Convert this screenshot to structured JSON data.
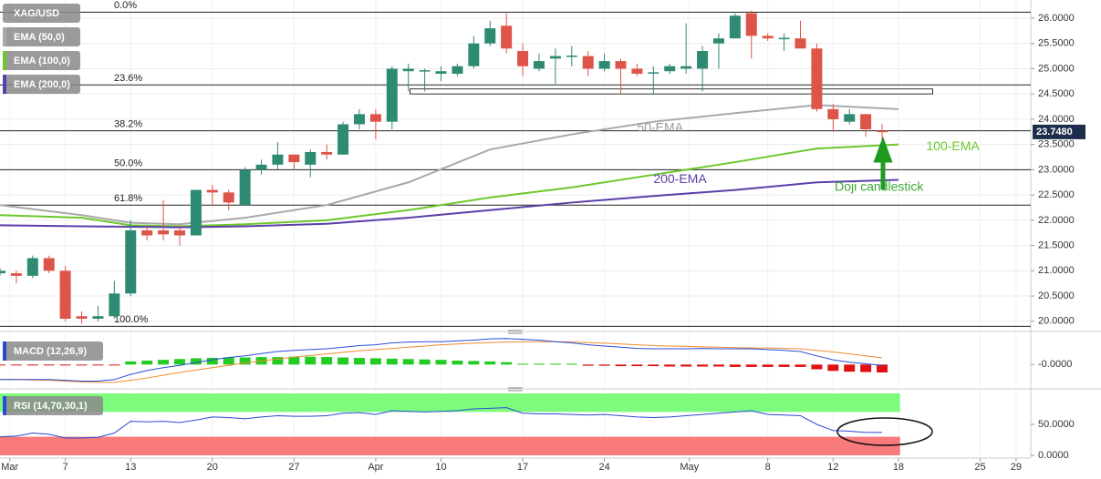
{
  "chart_data": [
    {
      "type": "candlestick",
      "instrument": "XAG/USD",
      "xlim": [
        0,
        63.1
      ],
      "ylim": [
        19.87,
        26.36
      ],
      "yticks": [
        {
          "value": 20,
          "label": "20.0000"
        },
        {
          "value": 20.5,
          "label": "20.5000"
        },
        {
          "value": 21,
          "label": "21.0000"
        },
        {
          "value": 21.5,
          "label": "21.5000"
        },
        {
          "value": 22,
          "label": "22.0000"
        },
        {
          "value": 22.5,
          "label": "22.5000"
        },
        {
          "value": 23,
          "label": "23.0000"
        },
        {
          "value": 23.5,
          "label": "23.5000"
        },
        {
          "value": 24,
          "label": "24.0000"
        },
        {
          "value": 24.5,
          "label": "24.5000"
        },
        {
          "value": 25,
          "label": "25.0000"
        },
        {
          "value": 25.5,
          "label": "25.5000"
        },
        {
          "value": 26,
          "label": "26.0000"
        }
      ],
      "x": [
        0,
        1,
        2,
        3,
        4,
        5,
        6,
        7,
        8,
        9,
        10,
        11,
        12,
        13,
        14,
        15,
        16,
        17,
        18,
        19,
        20,
        21,
        22,
        23,
        24,
        25,
        26,
        27,
        28,
        29,
        30,
        31,
        32,
        33,
        34,
        35,
        36,
        37,
        38,
        39,
        40,
        41,
        42,
        43,
        44,
        45,
        46,
        47,
        48,
        49,
        50,
        51,
        52,
        53,
        54
      ],
      "open": [
        20.95,
        20.95,
        20.9,
        21.25,
        21.0,
        20.1,
        20.05,
        20.1,
        20.55,
        21.8,
        21.8,
        21.8,
        21.7,
        22.6,
        22.55,
        22.3,
        23.0,
        23.1,
        23.3,
        23.1,
        23.35,
        23.3,
        23.9,
        24.1,
        23.95,
        24.95,
        24.95,
        24.9,
        24.9,
        25.05,
        25.5,
        25.85,
        25.35,
        25.0,
        25.2,
        25.25,
        25.25,
        25.0,
        25.15,
        25.0,
        24.92,
        24.95,
        25.0,
        25.0,
        25.5,
        25.6,
        26.1,
        25.65,
        25.6,
        25.6,
        25.4,
        24.2,
        23.95,
        24.1,
        23.77
      ],
      "high": [
        21.05,
        21.0,
        21.3,
        21.3,
        21.1,
        20.2,
        20.3,
        20.8,
        22.0,
        21.9,
        22.4,
        21.9,
        22.6,
        22.7,
        22.6,
        23.05,
        23.2,
        23.55,
        23.3,
        23.4,
        23.5,
        23.95,
        24.2,
        24.2,
        25.05,
        25.1,
        25.0,
        25.05,
        25.1,
        25.65,
        25.95,
        26.1,
        25.5,
        25.3,
        25.4,
        25.45,
        25.35,
        25.3,
        25.2,
        25.1,
        25.05,
        25.1,
        25.9,
        25.45,
        25.7,
        26.1,
        26.15,
        25.7,
        25.7,
        25.95,
        25.5,
        24.3,
        24.2,
        24.1,
        23.9
      ],
      "low": [
        20.9,
        20.75,
        20.85,
        20.95,
        20.0,
        19.95,
        20.0,
        20.05,
        20.5,
        21.6,
        21.6,
        21.5,
        21.7,
        22.3,
        22.2,
        22.3,
        22.9,
        23.0,
        23.0,
        22.85,
        23.2,
        23.3,
        23.8,
        23.6,
        23.8,
        24.55,
        24.55,
        24.75,
        24.85,
        25.0,
        25.45,
        25.3,
        24.85,
        24.95,
        24.7,
        25.05,
        24.85,
        24.95,
        24.5,
        24.85,
        24.5,
        24.9,
        24.9,
        24.55,
        25.0,
        25.6,
        25.2,
        25.55,
        25.35,
        25.4,
        24.15,
        23.75,
        23.9,
        23.65,
        23.55
      ],
      "close": [
        21.0,
        20.9,
        21.25,
        21.0,
        20.05,
        20.05,
        20.1,
        20.55,
        21.8,
        21.7,
        21.72,
        21.7,
        22.6,
        22.55,
        22.35,
        23.0,
        23.1,
        23.3,
        23.15,
        23.35,
        23.3,
        23.9,
        24.1,
        23.95,
        25.0,
        25.0,
        24.97,
        24.95,
        25.05,
        25.5,
        25.8,
        25.4,
        25.05,
        25.15,
        25.25,
        25.26,
        25.0,
        25.15,
        25.0,
        24.9,
        24.93,
        25.05,
        25.05,
        25.35,
        25.6,
        26.05,
        25.65,
        25.6,
        25.61,
        25.4,
        24.2,
        24.0,
        24.1,
        23.8,
        23.75
      ],
      "up_color": "#2f8a73",
      "down_color": "#dd5448",
      "series": [
        {
          "name": "EMA (50,0)",
          "color": "#a9a9a9",
          "x": [
            0,
            5,
            8,
            11,
            15,
            20,
            25,
            30,
            35,
            40,
            45,
            50,
            55
          ],
          "values": [
            22.3,
            22.1,
            21.95,
            21.92,
            22.05,
            22.3,
            22.75,
            23.4,
            23.7,
            23.95,
            24.12,
            24.28,
            24.2
          ]
        },
        {
          "name": "EMA (100,0)",
          "color": "#6cc82c",
          "x": [
            0,
            5,
            8,
            11,
            15,
            20,
            25,
            30,
            35,
            40,
            45,
            50,
            55
          ],
          "values": [
            22.1,
            22.05,
            21.9,
            21.88,
            21.92,
            22.0,
            22.2,
            22.45,
            22.65,
            22.9,
            23.15,
            23.42,
            23.5
          ]
        },
        {
          "name": "EMA (200,0)",
          "color": "#5b3fa8",
          "x": [
            0,
            5,
            8,
            11,
            15,
            20,
            25,
            30,
            35,
            40,
            45,
            50,
            55
          ],
          "values": [
            21.9,
            21.88,
            21.87,
            21.86,
            21.88,
            21.93,
            22.05,
            22.2,
            22.35,
            22.48,
            22.6,
            22.75,
            22.8
          ]
        }
      ],
      "levels": [
        {
          "label": "0.0%",
          "value": 26.12
        },
        {
          "label": "23.6%",
          "value": 24.68
        },
        {
          "label": "38.2%",
          "value": 23.77
        },
        {
          "label": "50.0%",
          "value": 23.0
        },
        {
          "label": "61.8%",
          "value": 22.3
        },
        {
          "label": "100.0%",
          "value": 19.9
        }
      ],
      "zone": {
        "x": [
          25.1,
          57.1
        ],
        "y": [
          24.6,
          24.5
        ]
      },
      "last_price": {
        "value": 23.748,
        "label": "23.7480"
      },
      "annotations": [
        {
          "text": "50-EMA",
          "x": 39,
          "y": 23.82,
          "color": "#9a9a9a"
        },
        {
          "text": "100-EMA",
          "x": 56.7,
          "y": 23.45,
          "color": "#6cc82c"
        },
        {
          "text": "200-EMA",
          "x": 40,
          "y": 22.8,
          "color": "#5b3fa8"
        },
        {
          "text": "Doji candlestick",
          "x": 51.1,
          "y": 22.65,
          "color": "#3aaa35"
        }
      ]
    },
    {
      "type": "macd",
      "name": "MACD (12,26,9)",
      "xlim": [
        0,
        63.1
      ],
      "ylim": [
        -0.5,
        0.7
      ],
      "yticks": [
        {
          "value": 0,
          "label": "-0.0000"
        }
      ],
      "x": [
        0,
        1,
        2,
        3,
        4,
        5,
        6,
        7,
        8,
        9,
        10,
        11,
        12,
        13,
        14,
        15,
        16,
        17,
        18,
        19,
        20,
        21,
        22,
        23,
        24,
        25,
        26,
        27,
        28,
        29,
        30,
        31,
        32,
        33,
        34,
        35,
        36,
        37,
        38,
        39,
        40,
        41,
        42,
        43,
        44,
        45,
        46,
        47,
        48,
        49,
        50,
        51,
        52,
        53,
        54
      ],
      "macd": [
        -0.38,
        -0.38,
        -0.38,
        -0.38,
        -0.4,
        -0.42,
        -0.42,
        -0.38,
        -0.25,
        -0.15,
        -0.08,
        -0.02,
        0.05,
        0.12,
        0.18,
        0.22,
        0.28,
        0.33,
        0.36,
        0.38,
        0.4,
        0.44,
        0.48,
        0.5,
        0.55,
        0.57,
        0.58,
        0.58,
        0.6,
        0.62,
        0.65,
        0.66,
        0.64,
        0.62,
        0.58,
        0.55,
        0.5,
        0.47,
        0.44,
        0.41,
        0.4,
        0.4,
        0.4,
        0.41,
        0.4,
        0.4,
        0.4,
        0.38,
        0.36,
        0.33,
        0.22,
        0.12,
        0.06,
        0.02,
        -0.02
      ],
      "signal": [
        -0.38,
        -0.38,
        -0.39,
        -0.4,
        -0.42,
        -0.44,
        -0.45,
        -0.45,
        -0.4,
        -0.34,
        -0.27,
        -0.2,
        -0.14,
        -0.08,
        -0.02,
        0.04,
        0.09,
        0.14,
        0.19,
        0.23,
        0.27,
        0.31,
        0.35,
        0.38,
        0.41,
        0.44,
        0.47,
        0.5,
        0.52,
        0.54,
        0.56,
        0.57,
        0.58,
        0.58,
        0.58,
        0.57,
        0.56,
        0.54,
        0.52,
        0.5,
        0.48,
        0.47,
        0.46,
        0.45,
        0.44,
        0.43,
        0.42,
        0.42,
        0.41,
        0.4,
        0.36,
        0.32,
        0.27,
        0.22,
        0.17
      ],
      "histogram": [
        -0.02,
        -0.02,
        -0.02,
        -0.02,
        -0.02,
        -0.02,
        -0.02,
        -0.02,
        0.08,
        0.1,
        0.12,
        0.14,
        0.16,
        0.17,
        0.18,
        0.18,
        0.19,
        0.19,
        0.2,
        0.2,
        0.19,
        0.18,
        0.17,
        0.16,
        0.15,
        0.14,
        0.13,
        0.12,
        0.1,
        0.09,
        0.08,
        0.06,
        0.02,
        0.02,
        0.02,
        0.02,
        -0.03,
        -0.03,
        -0.04,
        -0.04,
        -0.04,
        -0.05,
        -0.05,
        -0.05,
        -0.05,
        -0.06,
        -0.06,
        -0.06,
        -0.06,
        -0.06,
        -0.12,
        -0.16,
        -0.18,
        -0.19,
        -0.2
      ],
      "macd_color": "#2a4bd7",
      "signal_color": "#f08a2c",
      "up_color": "#22cc22",
      "down_color": "#e01010"
    },
    {
      "type": "rsi",
      "name": "RSI (14,70,30,1)",
      "xlim": [
        0,
        63.1
      ],
      "ylim": [
        0,
        100
      ],
      "yticks": [
        {
          "value": 0,
          "label": "0.0000"
        },
        {
          "value": 50,
          "label": "50.0000"
        }
      ],
      "xticks": [
        {
          "value": 0.6,
          "label": "Mar"
        },
        {
          "value": 4,
          "label": "7"
        },
        {
          "value": 8,
          "label": "13"
        },
        {
          "value": 13,
          "label": "20"
        },
        {
          "value": 18,
          "label": "27"
        },
        {
          "value": 23,
          "label": "Apr"
        },
        {
          "value": 27,
          "label": "10"
        },
        {
          "value": 32,
          "label": "17"
        },
        {
          "value": 37,
          "label": "24"
        },
        {
          "value": 42.2,
          "label": "May"
        },
        {
          "value": 47,
          "label": "8"
        },
        {
          "value": 51,
          "label": "12"
        },
        {
          "value": 55,
          "label": "18"
        },
        {
          "value": 60,
          "label": "25"
        },
        {
          "value": 62.2,
          "label": "29"
        }
      ],
      "x": [
        0,
        1,
        2,
        3,
        4,
        5,
        6,
        7,
        8,
        9,
        10,
        11,
        12,
        13,
        14,
        15,
        16,
        17,
        18,
        19,
        20,
        21,
        22,
        23,
        24,
        25,
        26,
        27,
        28,
        29,
        30,
        31,
        32,
        33,
        34,
        35,
        36,
        37,
        38,
        39,
        40,
        41,
        42,
        43,
        44,
        45,
        46,
        47,
        48,
        49,
        50,
        51,
        52,
        53,
        54
      ],
      "values": [
        30,
        31,
        36,
        34,
        28,
        28,
        29,
        36,
        55,
        54,
        55,
        53,
        57,
        62,
        61,
        59,
        62,
        64,
        63,
        63,
        64,
        68,
        69,
        66,
        72,
        71,
        70,
        71,
        72,
        75,
        76,
        77,
        68,
        67,
        67,
        66,
        65,
        66,
        64,
        62,
        61,
        62,
        64,
        66,
        68,
        70,
        72,
        66,
        65,
        64,
        50,
        40,
        39,
        37,
        37
      ],
      "color": "#2a4bd7",
      "bands": [
        {
          "from": 70,
          "to": 100,
          "color": "#7dfb7d",
          "x_end": 55.1
        },
        {
          "from": 0,
          "to": 30,
          "color": "#f87a7a",
          "x_end": 55.1
        }
      ]
    }
  ]
}
